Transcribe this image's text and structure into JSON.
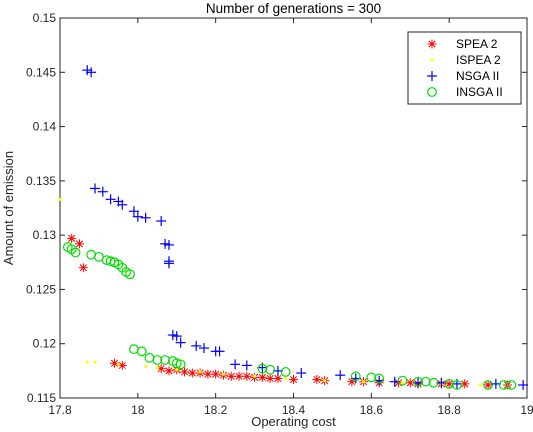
{
  "chart_data": {
    "type": "scatter",
    "title": "Number of generations = 300",
    "xlabel": "Operating cost",
    "ylabel": "Amount of emission",
    "xlim": [
      17.8,
      19.0
    ],
    "ylim": [
      0.115,
      0.15
    ],
    "xticks": [
      17.8,
      18,
      18.2,
      18.4,
      18.6,
      18.8,
      19
    ],
    "xtick_labels": [
      "17.8",
      "18",
      "18.2",
      "18.4",
      "18.6",
      "18.8",
      "19"
    ],
    "yticks": [
      0.115,
      0.12,
      0.125,
      0.13,
      0.135,
      0.14,
      0.145,
      0.15
    ],
    "ytick_labels": [
      "0.115",
      "0.12",
      "0.125",
      "0.13",
      "0.135",
      "0.14",
      "0.145",
      "0.15"
    ],
    "grid": false,
    "legend_position": "top-right",
    "series": [
      {
        "name": "SPEA 2",
        "marker": "asterisk",
        "color": "#ff0000",
        "points": [
          [
            17.83,
            0.1297
          ],
          [
            17.85,
            0.1292
          ],
          [
            17.86,
            0.127
          ],
          [
            17.94,
            0.1182
          ],
          [
            17.96,
            0.118
          ],
          [
            18.06,
            0.1177
          ],
          [
            18.08,
            0.1175
          ],
          [
            18.1,
            0.1176
          ],
          [
            18.12,
            0.1174
          ],
          [
            18.14,
            0.1173
          ],
          [
            18.16,
            0.1173
          ],
          [
            18.18,
            0.1172
          ],
          [
            18.2,
            0.1172
          ],
          [
            18.22,
            0.1171
          ],
          [
            18.24,
            0.117
          ],
          [
            18.26,
            0.117
          ],
          [
            18.28,
            0.117
          ],
          [
            18.3,
            0.1169
          ],
          [
            18.32,
            0.1169
          ],
          [
            18.34,
            0.1168
          ],
          [
            18.36,
            0.1168
          ],
          [
            18.4,
            0.1167
          ],
          [
            18.46,
            0.1167
          ],
          [
            18.48,
            0.1166
          ],
          [
            18.55,
            0.1165
          ],
          [
            18.58,
            0.1165
          ],
          [
            18.62,
            0.1164
          ],
          [
            18.67,
            0.1164
          ],
          [
            18.7,
            0.1164
          ],
          [
            18.72,
            0.1163
          ],
          [
            18.78,
            0.1163
          ],
          [
            18.8,
            0.1163
          ],
          [
            18.84,
            0.1163
          ],
          [
            18.9,
            0.1162
          ],
          [
            18.95,
            0.1162
          ]
        ]
      },
      {
        "name": "ISPEA 2",
        "marker": "dot",
        "color": "#ffff00",
        "points": [
          [
            17.8,
            0.1333
          ],
          [
            17.87,
            0.1183
          ],
          [
            17.89,
            0.1183
          ],
          [
            17.95,
            0.1181
          ],
          [
            18.02,
            0.1179
          ],
          [
            18.05,
            0.1178
          ],
          [
            18.1,
            0.1176
          ],
          [
            18.16,
            0.1174
          ],
          [
            18.22,
            0.1172
          ],
          [
            18.3,
            0.117
          ],
          [
            18.38,
            0.1168
          ],
          [
            18.48,
            0.1166
          ],
          [
            18.58,
            0.1165
          ],
          [
            18.68,
            0.1164
          ],
          [
            18.78,
            0.1163
          ],
          [
            18.88,
            0.1162
          ]
        ]
      },
      {
        "name": "NSGA II",
        "marker": "plus",
        "color": "#0000ff",
        "points": [
          [
            17.87,
            0.1452
          ],
          [
            17.88,
            0.145
          ],
          [
            17.89,
            0.1343
          ],
          [
            17.91,
            0.134
          ],
          [
            17.93,
            0.1333
          ],
          [
            17.95,
            0.1331
          ],
          [
            17.96,
            0.1328
          ],
          [
            17.99,
            0.1322
          ],
          [
            18.0,
            0.1317
          ],
          [
            18.02,
            0.1316
          ],
          [
            18.06,
            0.1313
          ],
          [
            18.07,
            0.1292
          ],
          [
            18.08,
            0.1291
          ],
          [
            18.08,
            0.1276
          ],
          [
            18.08,
            0.1274
          ],
          [
            18.09,
            0.1208
          ],
          [
            18.1,
            0.1207
          ],
          [
            18.11,
            0.1201
          ],
          [
            18.15,
            0.1198
          ],
          [
            18.17,
            0.1196
          ],
          [
            18.2,
            0.1193
          ],
          [
            18.21,
            0.1193
          ],
          [
            18.25,
            0.1181
          ],
          [
            18.28,
            0.118
          ],
          [
            18.32,
            0.1178
          ],
          [
            18.36,
            0.1175
          ],
          [
            18.42,
            0.1173
          ],
          [
            18.52,
            0.1171
          ],
          [
            18.56,
            0.1168
          ],
          [
            18.62,
            0.1166
          ],
          [
            18.66,
            0.1165
          ],
          [
            18.72,
            0.1164
          ],
          [
            18.78,
            0.1164
          ],
          [
            18.82,
            0.1163
          ],
          [
            18.92,
            0.1163
          ],
          [
            18.99,
            0.1162
          ]
        ]
      },
      {
        "name": "INSGA II",
        "marker": "circle",
        "color": "#00dd00",
        "points": [
          [
            17.82,
            0.1289
          ],
          [
            17.83,
            0.1287
          ],
          [
            17.84,
            0.1284
          ],
          [
            17.88,
            0.1282
          ],
          [
            17.9,
            0.128
          ],
          [
            17.92,
            0.1277
          ],
          [
            17.93,
            0.1276
          ],
          [
            17.94,
            0.1275
          ],
          [
            17.95,
            0.1273
          ],
          [
            17.96,
            0.127
          ],
          [
            17.97,
            0.1266
          ],
          [
            17.98,
            0.1264
          ],
          [
            17.99,
            0.1195
          ],
          [
            18.01,
            0.1193
          ],
          [
            18.03,
            0.1187
          ],
          [
            18.05,
            0.1185
          ],
          [
            18.07,
            0.1185
          ],
          [
            18.09,
            0.1184
          ],
          [
            18.1,
            0.1182
          ],
          [
            18.11,
            0.1181
          ],
          [
            18.32,
            0.1177
          ],
          [
            18.34,
            0.1176
          ],
          [
            18.38,
            0.1174
          ],
          [
            18.56,
            0.117
          ],
          [
            18.6,
            0.1169
          ],
          [
            18.62,
            0.1168
          ],
          [
            18.68,
            0.1166
          ],
          [
            18.72,
            0.1165
          ],
          [
            18.74,
            0.1165
          ],
          [
            18.76,
            0.1164
          ],
          [
            18.8,
            0.1163
          ],
          [
            18.82,
            0.1162
          ],
          [
            18.9,
            0.1162
          ],
          [
            18.94,
            0.1162
          ],
          [
            18.96,
            0.1162
          ]
        ]
      }
    ]
  }
}
